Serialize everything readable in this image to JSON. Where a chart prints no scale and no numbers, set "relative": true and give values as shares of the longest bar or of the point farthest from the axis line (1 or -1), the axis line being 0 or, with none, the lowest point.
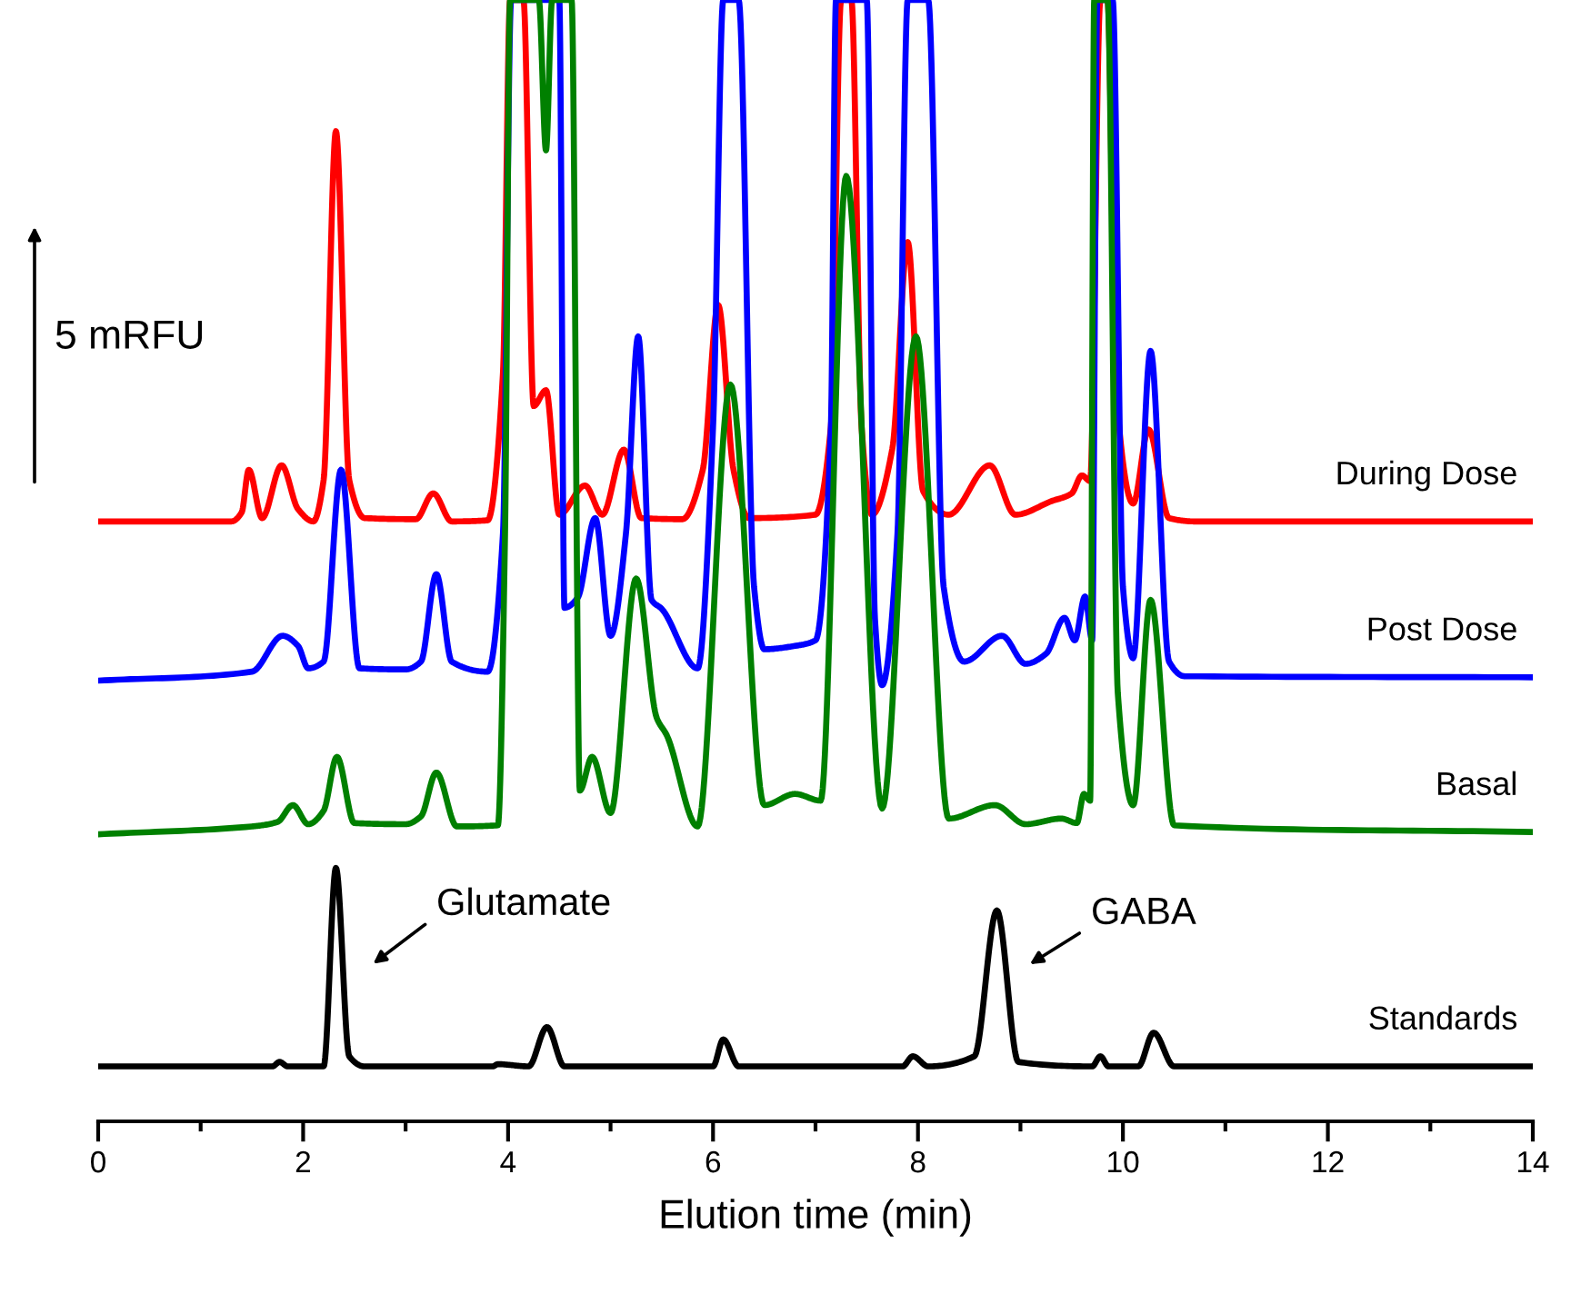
{
  "chart_data": {
    "type": "line",
    "xlabel": "Elution time (min)",
    "relative": true,
    "tick_labels": "x",
    "xlim": [
      0,
      14
    ],
    "xticks": [
      0,
      {
        "value": 1,
        "label": null
      },
      2,
      {
        "value": 3,
        "label": null
      },
      4,
      {
        "value": 5,
        "label": null
      },
      6,
      {
        "value": 7,
        "label": null
      },
      8,
      {
        "value": 9,
        "label": null
      },
      10,
      {
        "value": 11,
        "label": null
      },
      12,
      {
        "value": 13,
        "label": null
      },
      14
    ],
    "series": [
      {
        "name": "During Dose",
        "color": "#ff0000",
        "x": [
          0,
          1.3,
          1.4,
          1.47,
          1.6,
          1.79,
          1.95,
          2.1,
          2.2,
          2.32,
          2.45,
          2.6,
          3.1,
          3.27,
          3.45,
          3.8,
          3.95,
          4.02,
          4.15,
          4.25,
          4.37,
          4.5,
          4.75,
          4.92,
          5.13,
          5.3,
          5.7,
          5.9,
          6.05,
          6.2,
          6.35,
          7.0,
          7.15,
          7.25,
          7.35,
          7.45,
          7.55,
          7.75,
          7.9,
          8.05,
          8.3,
          8.7,
          8.95,
          9.3,
          9.5,
          9.6,
          9.68,
          9.78,
          9.85,
          9.93,
          10.1,
          10.25,
          10.45,
          10.7,
          14
        ],
        "values": [
          0.535,
          0.535,
          0.543,
          0.581,
          0.538,
          0.585,
          0.546,
          0.535,
          0.572,
          0.883,
          0.572,
          0.538,
          0.537,
          0.56,
          0.535,
          0.536,
          0.667,
          1,
          1,
          0.638,
          0.652,
          0.541,
          0.567,
          0.541,
          0.599,
          0.538,
          0.537,
          0.581,
          0.728,
          0.581,
          0.538,
          0.541,
          0.619,
          1,
          1,
          0.619,
          0.541,
          0.6,
          0.784,
          0.562,
          0.541,
          0.585,
          0.541,
          0.553,
          0.56,
          0.576,
          0.571,
          1,
          1,
          0.655,
          0.551,
          0.617,
          0.538,
          0.535,
          0.535
        ]
      },
      {
        "name": "Post Dose",
        "color": "#0000ff",
        "x": [
          0,
          1.5,
          1.8,
          1.95,
          2.05,
          2.2,
          2.37,
          2.55,
          3.0,
          3.15,
          3.3,
          3.45,
          3.8,
          3.95,
          4.03,
          4.5,
          4.55,
          4.68,
          4.85,
          5.0,
          5.15,
          5.27,
          5.4,
          5.5,
          5.85,
          6.0,
          6.1,
          6.25,
          6.4,
          6.5,
          6.8,
          7.0,
          7.15,
          7.2,
          7.5,
          7.58,
          7.65,
          7.8,
          7.9,
          8.1,
          8.25,
          8.45,
          8.82,
          9.05,
          9.25,
          9.43,
          9.53,
          9.63,
          9.7,
          9.75,
          9.9,
          10.0,
          10.1,
          10.27,
          10.45,
          10.6,
          14
        ],
        "values": [
          0.393,
          0.401,
          0.433,
          0.424,
          0.404,
          0.41,
          0.581,
          0.404,
          0.403,
          0.41,
          0.488,
          0.41,
          0.401,
          0.524,
          1,
          1,
          0.458,
          0.467,
          0.538,
          0.433,
          0.524,
          0.7,
          0.465,
          0.457,
          0.404,
          0.619,
          1,
          1,
          0.477,
          0.421,
          0.424,
          0.429,
          0.619,
          1,
          1,
          0.448,
          0.389,
          0.524,
          1,
          1,
          0.477,
          0.41,
          0.433,
          0.408,
          0.417,
          0.449,
          0.429,
          0.468,
          0.429,
          1,
          1,
          0.477,
          0.413,
          0.687,
          0.41,
          0.397,
          0.396
        ]
      },
      {
        "name": "Basal",
        "color": "#008000",
        "x": [
          0,
          1.5,
          1.75,
          1.9,
          2.05,
          2.2,
          2.33,
          2.5,
          3.0,
          3.15,
          3.3,
          3.5,
          3.9,
          3.97,
          4.02,
          4.3,
          4.37,
          4.43,
          4.62,
          4.7,
          4.82,
          5.0,
          5.25,
          5.45,
          5.55,
          5.85,
          6.17,
          6.5,
          6.8,
          7.05,
          7.3,
          7.65,
          7.98,
          8.3,
          8.75,
          9.05,
          9.4,
          9.55,
          9.62,
          9.68,
          9.72,
          9.85,
          9.95,
          10.1,
          10.27,
          10.5,
          14
        ],
        "values": [
          0.256,
          0.263,
          0.267,
          0.282,
          0.265,
          0.277,
          0.325,
          0.266,
          0.265,
          0.272,
          0.311,
          0.263,
          0.264,
          0.524,
          1,
          1,
          0.866,
          1,
          1,
          0.295,
          0.325,
          0.275,
          0.484,
          0.36,
          0.344,
          0.263,
          0.657,
          0.282,
          0.292,
          0.286,
          0.843,
          0.279,
          0.7,
          0.27,
          0.282,
          0.265,
          0.27,
          0.266,
          0.292,
          0.286,
          1,
          1,
          0.382,
          0.282,
          0.465,
          0.264,
          0.258
        ]
      },
      {
        "name": "Standards",
        "color": "#000000",
        "x": [
          0,
          1.7,
          1.77,
          1.85,
          2.2,
          2.32,
          2.45,
          2.6,
          3.85,
          3.9,
          4.2,
          4.38,
          4.55,
          6.0,
          6.1,
          6.25,
          7.85,
          7.95,
          8.1,
          8.55,
          8.77,
          8.98,
          9.7,
          9.78,
          9.86,
          10.15,
          10.3,
          10.5,
          14
        ],
        "values": [
          0.049,
          0.049,
          0.053,
          0.049,
          0.049,
          0.226,
          0.058,
          0.049,
          0.049,
          0.051,
          0.049,
          0.084,
          0.049,
          0.049,
          0.073,
          0.049,
          0.049,
          0.058,
          0.049,
          0.058,
          0.188,
          0.053,
          0.049,
          0.058,
          0.049,
          0.049,
          0.079,
          0.049,
          0.049
        ]
      }
    ],
    "annotations": [
      "Glutamate",
      "GABA",
      "5 mRFU"
    ]
  }
}
